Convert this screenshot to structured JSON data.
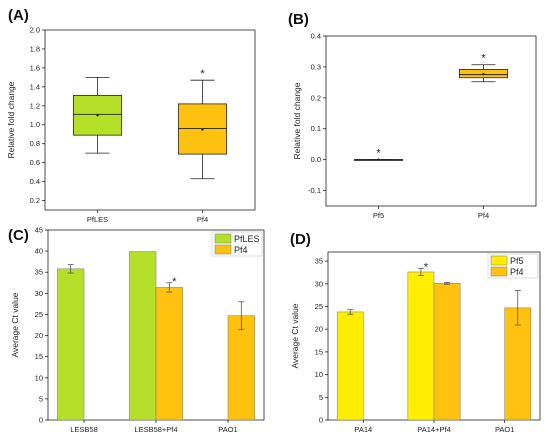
{
  "colors": {
    "green": "#b5e02a",
    "orange": "#ffc20e",
    "yellow": "#ffee00",
    "axis": "#222222",
    "err": "#555555"
  },
  "chart_data": [
    {
      "id": "A",
      "panel_label": "(A)",
      "type": "box",
      "ylabel": "Relative fold change",
      "ylim": [
        0.1,
        2.0
      ],
      "yticks": [
        0.2,
        0.4,
        0.6,
        0.8,
        1.0,
        1.2,
        1.4,
        1.6,
        1.8,
        2.0
      ],
      "categories": [
        "PfLES",
        "Pf4"
      ],
      "boxes": [
        {
          "name": "PfLES",
          "color": "green",
          "min": 0.7,
          "q1": 0.89,
          "median": 1.11,
          "q3": 1.31,
          "max": 1.5,
          "mean": 1.1,
          "star": false
        },
        {
          "name": "Pf4",
          "color": "orange",
          "min": 0.43,
          "q1": 0.69,
          "median": 0.96,
          "q3": 1.22,
          "max": 1.47,
          "mean": 0.95,
          "star": true
        }
      ]
    },
    {
      "id": "B",
      "panel_label": "(B)",
      "type": "box",
      "ylabel": "Relative fold change",
      "ylim": [
        -0.15,
        0.4
      ],
      "yticks": [
        -0.1,
        0.0,
        0.1,
        0.2,
        0.3,
        0.4
      ],
      "categories": [
        "Pf5",
        "Pf4"
      ],
      "boxes": [
        {
          "name": "Pf5",
          "color": "yellow",
          "min": 0.0,
          "q1": 0.0,
          "median": 0.0,
          "q3": 0.0,
          "max": 0.0,
          "mean": 0.0,
          "star": true
        },
        {
          "name": "Pf4",
          "color": "orange",
          "min": 0.252,
          "q1": 0.265,
          "median": 0.275,
          "q3": 0.292,
          "max": 0.307,
          "mean": 0.277,
          "star": true
        }
      ]
    },
    {
      "id": "C",
      "panel_label": "(C)",
      "type": "bar",
      "ylabel": "Average Ct value",
      "ylim": [
        0,
        45
      ],
      "yticks": [
        0,
        5,
        10,
        15,
        20,
        25,
        30,
        35,
        40,
        45
      ],
      "categories": [
        "LESB58",
        "LESB58+Pf4",
        "PAO1"
      ],
      "series": [
        {
          "name": "PfLES",
          "color": "green",
          "values": [
            35.8,
            39.9,
            null
          ],
          "errors": [
            1.0,
            0.0,
            null
          ],
          "stars": [
            false,
            false,
            false
          ]
        },
        {
          "name": "Pf4",
          "color": "orange",
          "values": [
            null,
            31.4,
            24.7
          ],
          "errors": [
            null,
            1.1,
            3.3
          ],
          "stars": [
            false,
            true,
            false
          ]
        }
      ],
      "legend": [
        "PfLES",
        "Pf4"
      ],
      "legend_position": "top-right"
    },
    {
      "id": "D",
      "panel_label": "(D)",
      "type": "bar",
      "ylabel": "Average Ct value",
      "ylim": [
        0,
        37
      ],
      "yticks": [
        0,
        5,
        10,
        15,
        20,
        25,
        30,
        35
      ],
      "categories": [
        "PA14",
        "PA14+Pf4",
        "PAO1"
      ],
      "series": [
        {
          "name": "Pf5",
          "color": "yellow",
          "values": [
            23.8,
            32.6,
            null
          ],
          "errors": [
            0.5,
            0.8,
            null
          ],
          "stars": [
            false,
            true,
            false
          ]
        },
        {
          "name": "Pf4",
          "color": "orange",
          "values": [
            null,
            30.1,
            24.7
          ],
          "errors": [
            null,
            0.2,
            3.8
          ],
          "stars": [
            false,
            false,
            false
          ]
        }
      ],
      "legend": [
        "Pf5",
        "Pf4"
      ],
      "legend_position": "top-right"
    }
  ]
}
